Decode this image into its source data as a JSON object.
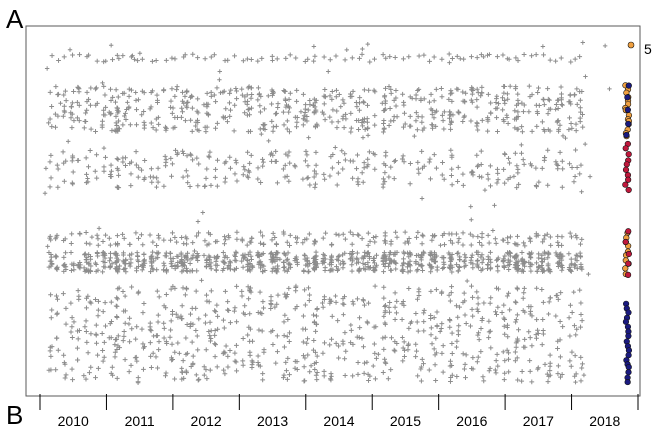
{
  "figure": {
    "panel_a_label": "A",
    "panel_b_label": "B",
    "side_label": "5"
  },
  "chart_data": {
    "type": "scatter",
    "title": "",
    "xlabel": "",
    "ylabel": "",
    "x_tick_labels": [
      "2010",
      "2011",
      "2012",
      "2013",
      "2014",
      "2015",
      "2016",
      "2017",
      "2018"
    ],
    "grid": false,
    "legend": "none",
    "marker_colors": {
      "historical": "#8c8c8c",
      "highlight_orange": "#f0a040",
      "highlight_red": "#c0183c",
      "highlight_navy": "#1a1a80"
    }
  }
}
